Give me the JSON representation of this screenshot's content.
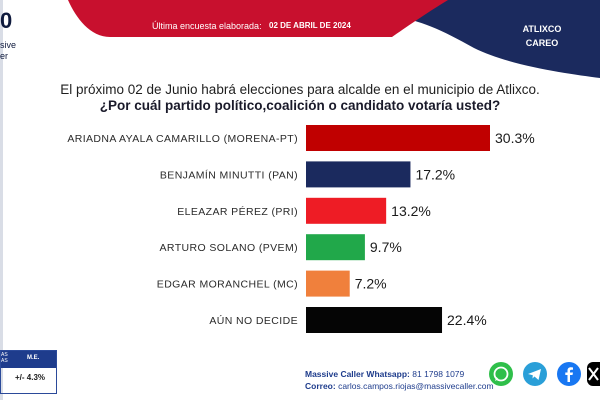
{
  "header": {
    "logo_fragment": "0",
    "logo_text_fragment": "sive\ner",
    "survey_label": "Última encuesta elaborada:",
    "survey_date": "02 DE ABRIL DE 2024",
    "region_line1": "ATLIXCO",
    "region_line2": "CAREO",
    "colors": {
      "red": "#c8102e",
      "navy": "#1b2a5e"
    }
  },
  "question": {
    "line1": "El próximo 02 de Junio habrá elecciones para alcalde en el municipio de  Atlixco.",
    "line2": "¿Por cuál partido político,coalición o candidato votaría usted?"
  },
  "chart_data": {
    "type": "bar",
    "orientation": "horizontal",
    "categories": [
      "ARIADNA AYALA CAMARILLO (MORENA-PT)",
      "BENJAMÍN MINUTTI (PAN)",
      "ELEAZAR PÉREZ (PRI)",
      "ARTURO SOLANO (PVEM)",
      "EDGAR MORANCHEL (MC)",
      "AÚN NO DECIDE"
    ],
    "values": [
      30.3,
      17.2,
      13.2,
      9.7,
      7.2,
      22.4
    ],
    "value_labels": [
      "30.3%",
      "17.2%",
      "13.2%",
      "9.7%",
      "7.2%",
      "22.4%"
    ],
    "colors": [
      "#c00000",
      "#1b2a5e",
      "#ee1c25",
      "#21a84a",
      "#f0803c",
      "#050505"
    ],
    "xlim": [
      0,
      30.3
    ],
    "grid": false,
    "legend": "none"
  },
  "margin_table": {
    "header_left": "AS\nAS",
    "header_right": "M.E.",
    "value": "+/- 4.3%"
  },
  "footer": {
    "whatsapp_label": "Massive Caller Whatsapp:",
    "whatsapp_number": "81 1798 1079",
    "email_label": "Correo:",
    "email": "carlos.campos.riojas@massivecaller.com",
    "icons": [
      "whatsapp-icon",
      "telegram-icon",
      "facebook-icon",
      "x-icon"
    ]
  }
}
